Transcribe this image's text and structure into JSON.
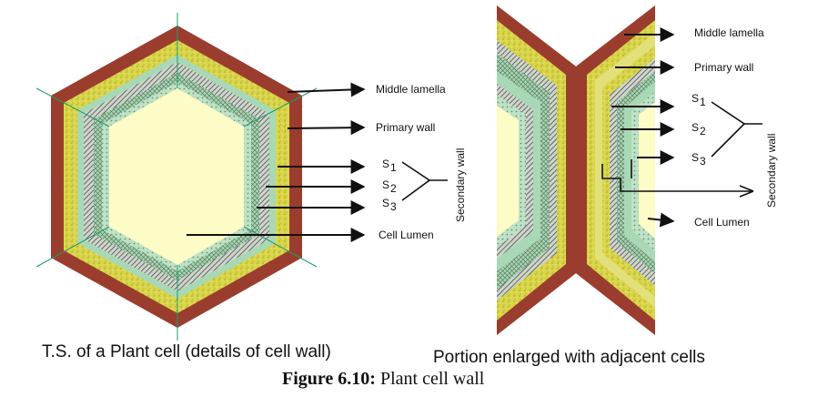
{
  "left": {
    "labels": {
      "middle_lamella": "Middle lamella",
      "primary_wall": "Primary wall",
      "s1": "S",
      "s1_sub": "1",
      "s2": "S",
      "s2_sub": "2",
      "s3": "S",
      "s3_sub": "3",
      "secondary_wall": "Secondary wall",
      "cell_lumen": "Cell Lumen"
    },
    "caption": "T.S. of a Plant cell (details of cell wall)"
  },
  "right": {
    "labels": {
      "middle_lamella": "Middle lamella",
      "primary_wall": "Primary wall",
      "s1": "S",
      "s1_sub": "1",
      "s2": "S",
      "s2_sub": "2",
      "s3": "S",
      "s3_sub": "3",
      "secondary_wall": "Secondary wall",
      "cell_lumen": "Cell Lumen"
    },
    "caption": "Portion enlarged with adjacent cells"
  },
  "figure": {
    "number": "Figure 6.10:",
    "title": "Plant cell wall"
  },
  "colors": {
    "middle_lamella": "#9b3d2e",
    "primary_wall": "#d6d23a",
    "s1": "#a9d8b6",
    "s2": "#8f9a8c",
    "s3": "#bfe3c8",
    "lumen": "#fdfbc6",
    "guide": "#1e9a68"
  }
}
